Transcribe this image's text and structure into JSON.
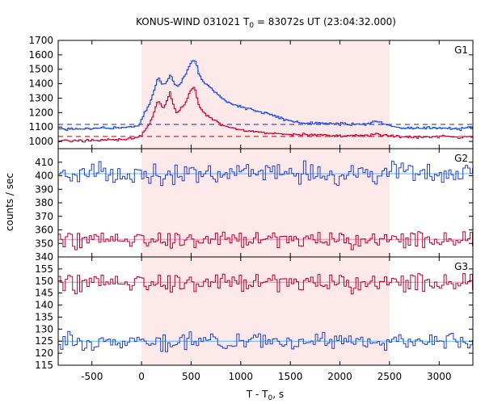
{
  "chart_data": {
    "type": "line",
    "title_main": "KONUS-WIND 031021 T",
    "title_sub": "0",
    "title_rest": " = 83072s UT (23:04:32.000)",
    "xlabel_main": "T - T",
    "xlabel_sub": "0",
    "xlabel_rest": ", s",
    "ylabel": "counts / sec",
    "xlim": [
      -840,
      3340
    ],
    "xticks": [
      -500,
      0,
      500,
      1000,
      1500,
      2000,
      2500,
      3000
    ],
    "highlight_interval": [
      0,
      2500
    ],
    "colors": {
      "blue": "#1f3fcf",
      "red": "#b8002a",
      "light_blue": "#4fb7ff",
      "pink": "#ff7fb5",
      "shade": "#fde8ea",
      "dash_blue": "#2020b0",
      "dash_red": "#b00000"
    },
    "panels": [
      {
        "label": "G1",
        "ylim": [
          950,
          1700
        ],
        "yticks": [
          1000,
          1100,
          1200,
          1300,
          1400,
          1500,
          1600,
          1700
        ],
        "background_levels": [
          {
            "value": 1118,
            "color": "blue"
          },
          {
            "value": 1035,
            "color": "red"
          }
        ],
        "series": [
          {
            "color": "blue",
            "shape": "profile",
            "x": [
              -840,
              -500,
              -300,
              -100,
              -20,
              0,
              20,
              50,
              80,
              110,
              140,
              170,
              200,
              230,
              260,
              290,
              330,
              360,
              400,
              450,
              480,
              510,
              540,
              560,
              580,
              600,
              630,
              660,
              700,
              750,
              800,
              900,
              1000,
              1100,
              1200,
              1300,
              1400,
              1500,
              1600,
              1700,
              1800,
              1900,
              2000,
              2100,
              2200,
              2300,
              2350,
              2380,
              2400,
              2450,
              2500,
              2600,
              2800,
              3000,
              3200,
              3340
            ],
            "y": [
              1085,
              1087,
              1095,
              1100,
              1110,
              1150,
              1185,
              1220,
              1260,
              1320,
              1380,
              1450,
              1400,
              1390,
              1420,
              1460,
              1400,
              1380,
              1410,
              1470,
              1520,
              1560,
              1565,
              1520,
              1470,
              1440,
              1410,
              1390,
              1370,
              1340,
              1300,
              1265,
              1240,
              1225,
              1205,
              1190,
              1160,
              1140,
              1130,
              1125,
              1125,
              1122,
              1120,
              1120,
              1118,
              1125,
              1135,
              1140,
              1130,
              1120,
              1110,
              1095,
              1090,
              1092,
              1090,
              1095
            ]
          },
          {
            "color": "red",
            "shape": "profile",
            "x": [
              -840,
              -500,
              -300,
              -100,
              0,
              20,
              50,
              80,
              110,
              140,
              170,
              200,
              230,
              260,
              290,
              330,
              360,
              400,
              450,
              480,
              510,
              540,
              560,
              580,
              600,
              630,
              660,
              700,
              750,
              800,
              900,
              1000,
              1100,
              1200,
              1300,
              1400,
              1500,
              1600,
              1700,
              1800,
              1900,
              2000,
              2100,
              2200,
              2300,
              2350,
              2380,
              2400,
              2500,
              2600,
              2800,
              3000,
              3200,
              3340
            ],
            "y": [
              1005,
              1008,
              1012,
              1018,
              1040,
              1060,
              1090,
              1120,
              1170,
              1230,
              1280,
              1250,
              1230,
              1290,
              1340,
              1230,
              1200,
              1230,
              1270,
              1330,
              1370,
              1380,
              1300,
              1250,
              1220,
              1200,
              1180,
              1160,
              1140,
              1115,
              1095,
              1080,
              1070,
              1062,
              1058,
              1055,
              1050,
              1048,
              1045,
              1045,
              1042,
              1040,
              1040,
              1040,
              1042,
              1050,
              1060,
              1048,
              1040,
              1035,
              1030,
              1035,
              1032,
              1035
            ]
          }
        ]
      },
      {
        "label": "G2",
        "ylim": [
          340,
          420
        ],
        "yticks": [
          340,
          350,
          360,
          370,
          380,
          390,
          400,
          410
        ],
        "series": [
          {
            "color": "blue",
            "shape": "flat",
            "mean": 401.5,
            "noise": 6,
            "seed": 3
          },
          {
            "color": "red",
            "shape": "flat",
            "mean": 353,
            "noise": 5,
            "seed": 11
          }
        ]
      },
      {
        "label": "G3",
        "ylim": [
          115,
          160
        ],
        "yticks": [
          115,
          120,
          125,
          130,
          135,
          140,
          145,
          150,
          155
        ],
        "series": [
          {
            "color": "red",
            "shape": "flat",
            "mean": 149.5,
            "noise": 3.2,
            "seed": 5
          },
          {
            "color": "blue",
            "shape": "flat",
            "mean": 125,
            "noise": 2.6,
            "seed": 17
          }
        ]
      }
    ]
  }
}
